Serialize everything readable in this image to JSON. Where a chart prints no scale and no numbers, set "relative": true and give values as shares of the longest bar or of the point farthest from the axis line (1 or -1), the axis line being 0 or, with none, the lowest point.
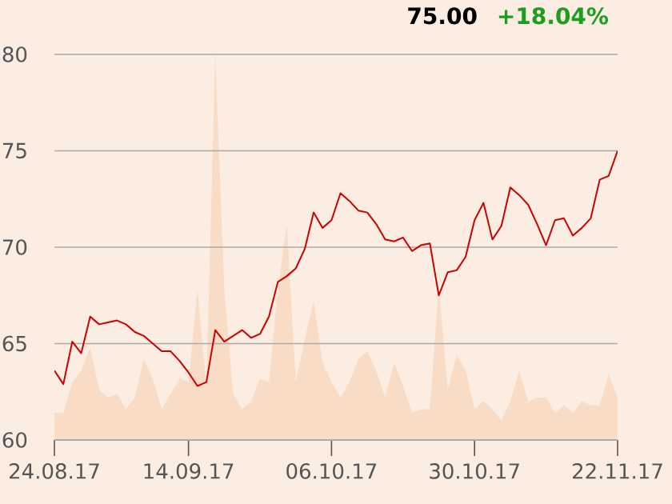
{
  "chart_data": [
    {
      "type": "line",
      "annotations": [
        "75.00",
        "+18.04%"
      ],
      "categories": [
        "24.08.17",
        null,
        null,
        null,
        null,
        null,
        null,
        null,
        null,
        null,
        null,
        null,
        null,
        null,
        null,
        "14.09.17",
        null,
        null,
        null,
        null,
        null,
        null,
        null,
        null,
        null,
        null,
        null,
        null,
        null,
        null,
        null,
        "06.10.17",
        null,
        null,
        null,
        null,
        null,
        null,
        null,
        null,
        null,
        null,
        null,
        null,
        null,
        null,
        null,
        "30.10.17",
        null,
        null,
        null,
        null,
        null,
        null,
        null,
        null,
        null,
        null,
        null,
        null,
        null,
        null,
        null,
        "22.11.17"
      ],
      "series": [
        {
          "color": "#cc0000",
          "values": [
            63.6,
            62.9,
            65.1,
            64.5,
            66.4,
            66.0,
            66.1,
            66.2,
            66.0,
            65.6,
            65.4,
            65.0,
            64.6,
            64.6,
            64.1,
            63.5,
            62.8,
            63.0,
            65.7,
            65.1,
            65.4,
            65.7,
            65.3,
            65.5,
            66.4,
            68.2,
            68.5,
            68.9,
            69.9,
            71.8,
            71.0,
            71.4,
            72.8,
            72.4,
            71.9,
            71.8,
            71.2,
            70.4,
            70.3,
            70.5,
            69.8,
            70.1,
            70.2,
            67.5,
            68.7,
            68.8,
            69.5,
            71.4,
            72.3,
            70.4,
            71.1,
            73.1,
            72.7,
            72.2,
            71.2,
            70.1,
            71.4,
            71.5,
            70.6,
            71.0,
            71.5,
            73.5,
            73.7,
            75.0
          ]
        }
      ],
      "ylim": [
        60,
        80
      ],
      "yticks": [
        60,
        65,
        70,
        75,
        80
      ],
      "grid": "y"
    },
    {
      "type": "area",
      "relative": true,
      "categories": [
        null,
        null,
        null,
        null,
        null,
        null,
        null,
        null,
        null,
        null,
        null,
        null,
        null,
        null,
        null,
        null,
        null,
        null,
        null,
        null,
        null,
        null,
        null,
        null,
        null,
        null,
        null,
        null,
        null,
        null,
        null,
        null,
        null,
        null,
        null,
        null,
        null,
        null,
        null,
        null,
        null,
        null,
        null,
        null,
        null,
        null,
        null,
        null,
        null,
        null,
        null,
        null,
        null,
        null,
        null,
        null,
        null,
        null,
        null,
        null,
        null,
        null,
        null,
        null
      ],
      "series": [
        {
          "color": "#f8dcc6",
          "values": [
            0.07,
            0.07,
            0.15,
            0.18,
            0.24,
            0.13,
            0.11,
            0.12,
            0.08,
            0.11,
            0.21,
            0.16,
            0.08,
            0.12,
            0.16,
            0.15,
            0.39,
            0.14,
            1.0,
            0.39,
            0.12,
            0.08,
            0.1,
            0.16,
            0.15,
            0.39,
            0.56,
            0.15,
            0.26,
            0.36,
            0.2,
            0.15,
            0.11,
            0.15,
            0.21,
            0.23,
            0.18,
            0.11,
            0.2,
            0.14,
            0.07,
            0.08,
            0.08,
            0.4,
            0.13,
            0.22,
            0.18,
            0.08,
            0.1,
            0.08,
            0.05,
            0.1,
            0.18,
            0.1,
            0.11,
            0.11,
            0.07,
            0.09,
            0.07,
            0.1,
            0.09,
            0.09,
            0.17,
            0.11
          ]
        }
      ]
    }
  ]
}
